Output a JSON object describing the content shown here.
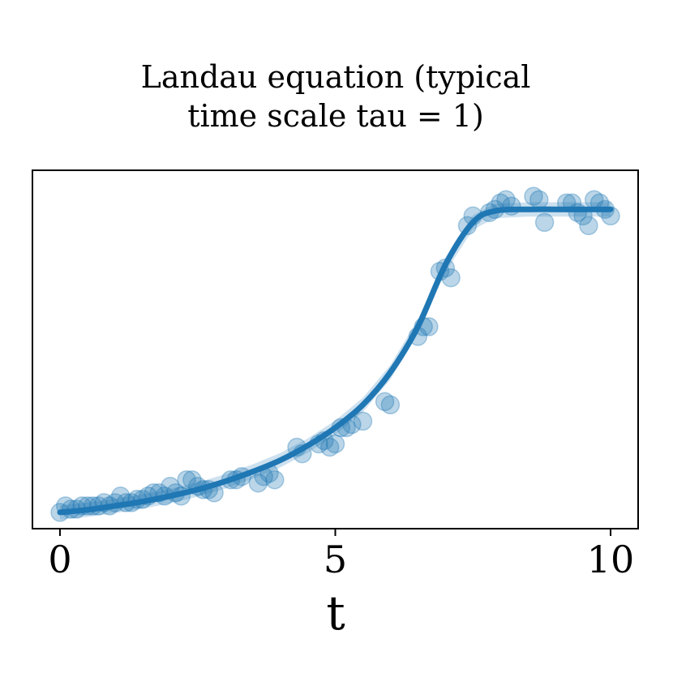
{
  "chart_data": {
    "type": "scatter",
    "title_lines": [
      "Landau equation (typical",
      "time scale tau = 1)"
    ],
    "xlabel": "t",
    "ylabel": "",
    "xlim": [
      -0.5,
      10.5
    ],
    "ylim": [
      -0.05,
      1.05
    ],
    "xticks": [
      0,
      5,
      10
    ],
    "xtick_labels": [
      "0",
      "5",
      "10"
    ],
    "grid": false,
    "colors": {
      "series": "#1f77b4",
      "points_fill": "rgba(31,119,180,0.3)",
      "band_fill": "rgba(31,119,180,0.22)",
      "axes": "#000000"
    },
    "series": [
      {
        "type": "scatter",
        "x": [
          0.0,
          0.1,
          0.2,
          0.3,
          0.4,
          0.5,
          0.6,
          0.7,
          0.8,
          0.9,
          1.0,
          1.1,
          1.2,
          1.3,
          1.4,
          1.5,
          1.6,
          1.7,
          1.8,
          1.9,
          2.0,
          2.1,
          2.2,
          2.3,
          2.4,
          2.5,
          2.6,
          2.7,
          2.8,
          3.1,
          3.2,
          3.3,
          3.6,
          3.7,
          3.8,
          3.9,
          4.3,
          4.4,
          4.7,
          4.8,
          4.9,
          5.0,
          5.1,
          5.2,
          5.3,
          5.5,
          5.9,
          6.0,
          6.5,
          6.6,
          6.7,
          6.9,
          7.0,
          7.1,
          7.4,
          7.5,
          7.8,
          7.9,
          8.0,
          8.1,
          8.2,
          8.6,
          8.7,
          8.8,
          9.2,
          9.3,
          9.4,
          9.5,
          9.6,
          9.7,
          9.8,
          9.9,
          10.0
        ],
        "y": [
          0.0,
          0.02,
          0.01,
          0.01,
          0.02,
          0.02,
          0.02,
          0.02,
          0.03,
          0.02,
          0.03,
          0.05,
          0.03,
          0.03,
          0.04,
          0.04,
          0.05,
          0.06,
          0.06,
          0.05,
          0.08,
          0.06,
          0.05,
          0.1,
          0.1,
          0.08,
          0.07,
          0.07,
          0.06,
          0.1,
          0.1,
          0.11,
          0.09,
          0.11,
          0.12,
          0.1,
          0.2,
          0.18,
          0.21,
          0.22,
          0.2,
          0.21,
          0.26,
          0.26,
          0.27,
          0.28,
          0.34,
          0.33,
          0.54,
          0.57,
          0.57,
          0.74,
          0.75,
          0.72,
          0.88,
          0.91,
          0.92,
          0.93,
          0.95,
          0.96,
          0.94,
          0.97,
          0.96,
          0.89,
          0.95,
          0.95,
          0.92,
          0.91,
          0.88,
          0.96,
          0.95,
          0.93,
          0.91
        ]
      },
      {
        "type": "line",
        "x": [
          0,
          0.5,
          1,
          1.5,
          2,
          2.5,
          3,
          3.5,
          4,
          4.5,
          5,
          5.5,
          6,
          6.5,
          7,
          7.5,
          7.9,
          8.5,
          9,
          9.5,
          10
        ],
        "y": [
          0.0,
          0.008,
          0.02,
          0.033,
          0.05,
          0.07,
          0.095,
          0.125,
          0.16,
          0.205,
          0.26,
          0.33,
          0.43,
          0.57,
          0.76,
          0.89,
          0.925,
          0.93,
          0.93,
          0.93,
          0.93
        ]
      }
    ]
  }
}
